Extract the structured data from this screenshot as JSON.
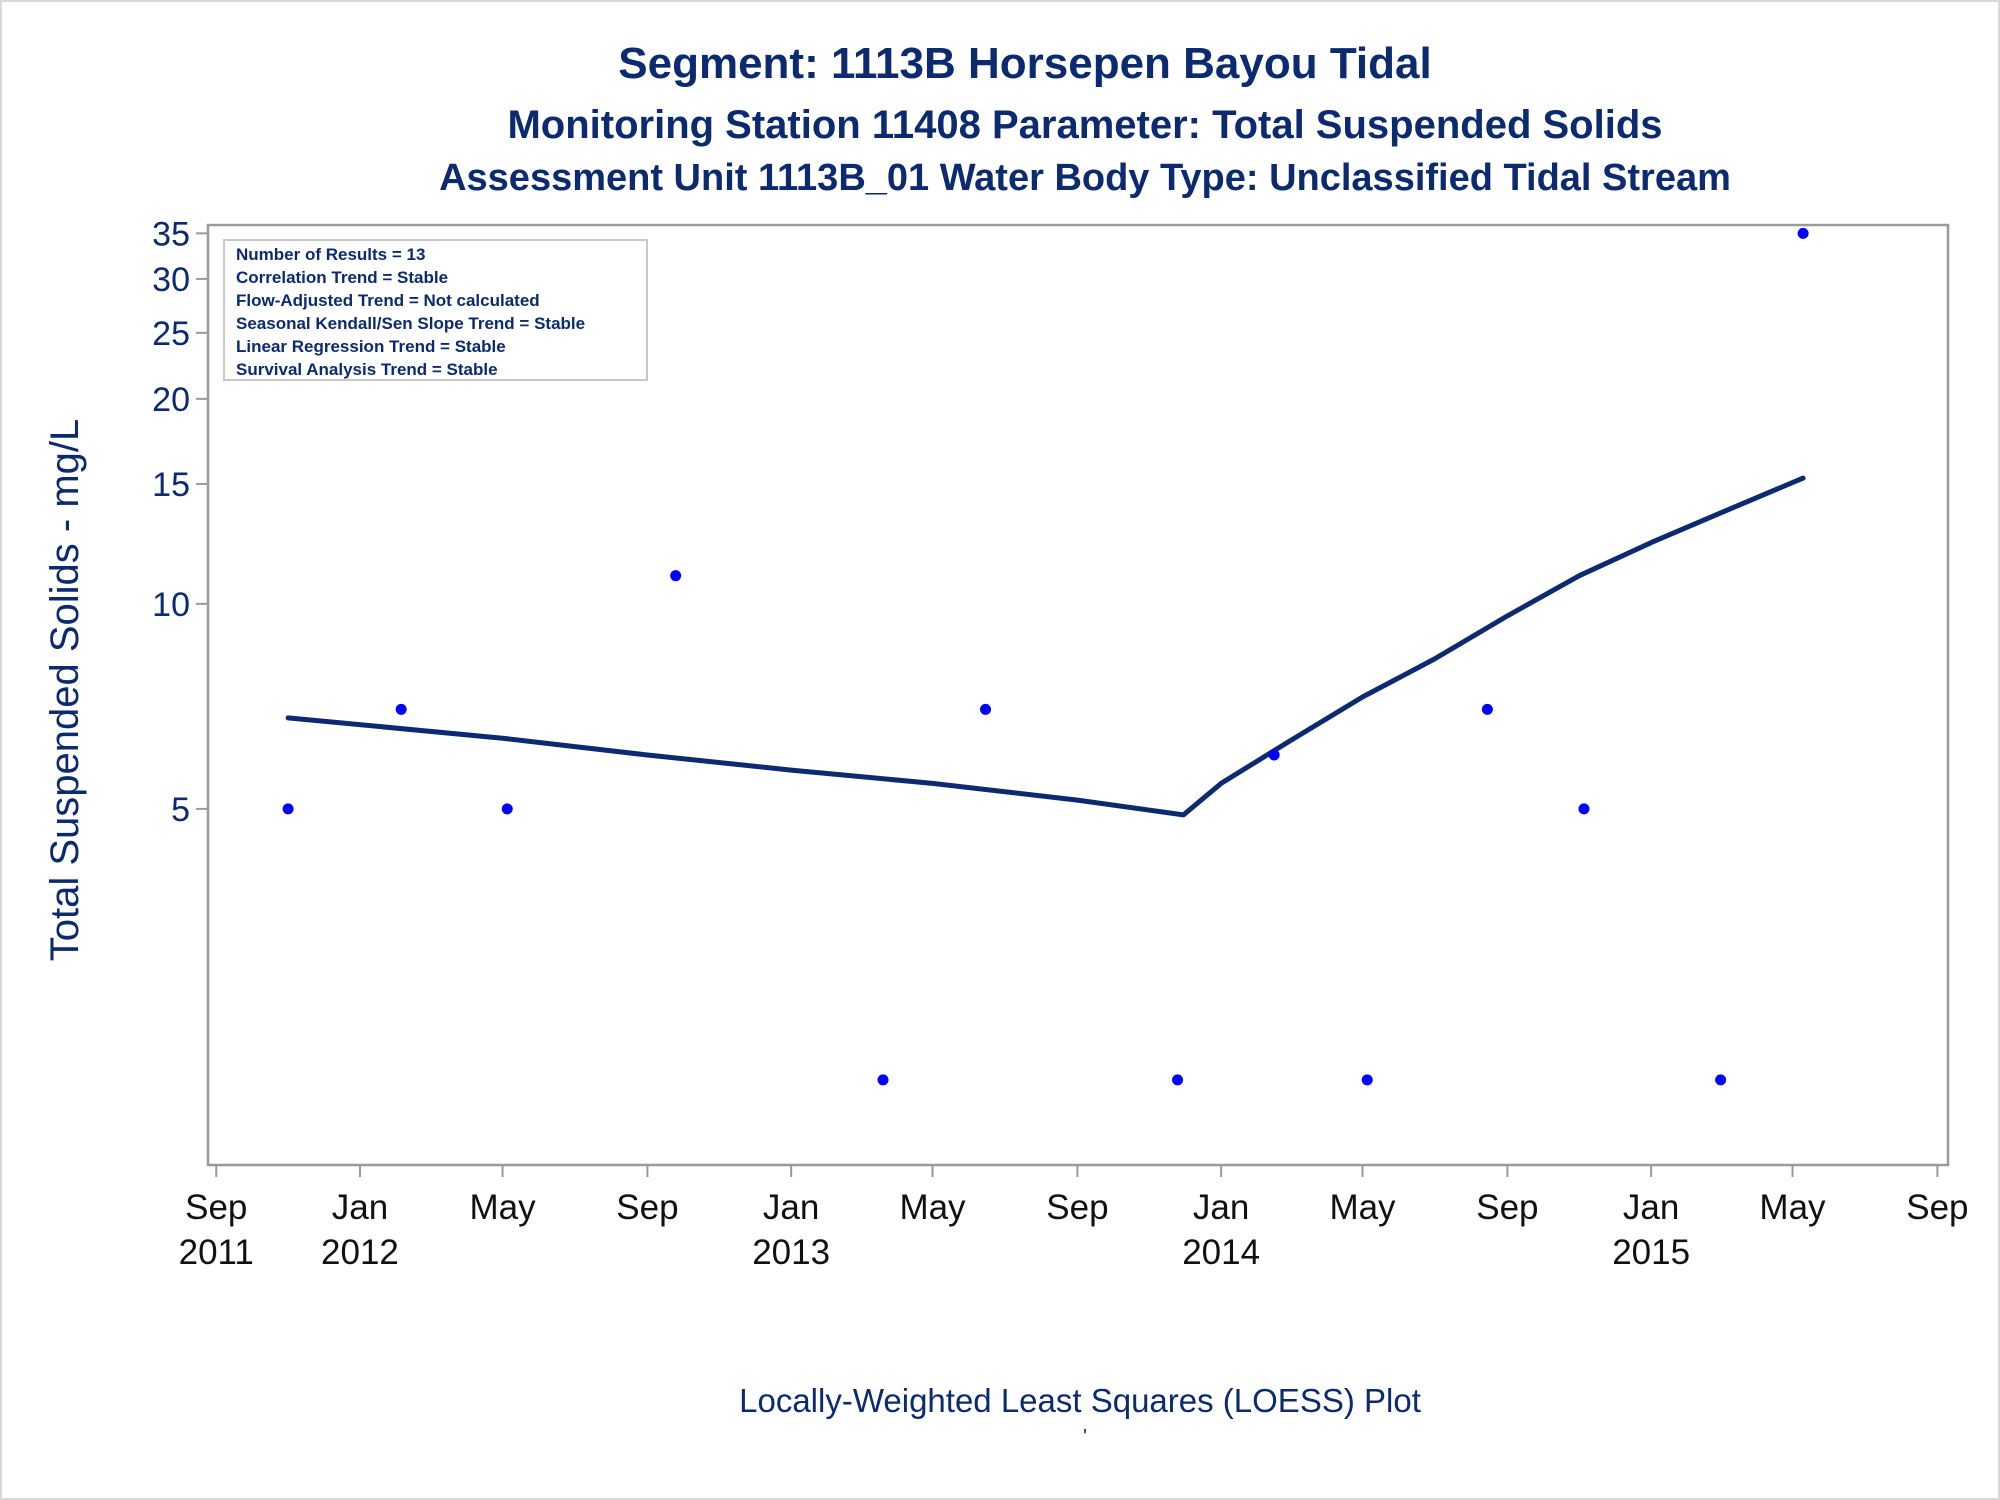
{
  "titles": {
    "line1": "Segment: 1113B  Horsepen Bayou Tidal",
    "line2": "Monitoring Station 11408 Parameter: Total Suspended Solids",
    "line3": "Assessment Unit 1113B_01   Water Body Type: Unclassified Tidal Stream"
  },
  "stats_box": [
    "Number of Results = 13",
    "Correlation Trend = Stable",
    "Flow-Adjusted Trend = Not calculated",
    "Seasonal Kendall/Sen Slope Trend = Stable",
    "Linear Regression Trend = Stable",
    "Survival Analysis Trend = Stable"
  ],
  "footnote": "Locally-Weighted Least Squares (LOESS) Plot",
  "footnote_mark": "'",
  "colors": {
    "text": "#0b2a6f",
    "points": "#0000ff",
    "loess_line": "#0b2a6f",
    "plot_border": "#9a9a9a"
  },
  "chart_data": {
    "type": "scatter",
    "title": "Segment: 1113B  Horsepen Bayou Tidal",
    "ylabel": "Total Suspended Solids - mg/L",
    "xlabel": "",
    "y_scale": "log",
    "ylim": [
      1.5,
      36
    ],
    "xlim": [
      "2011-08-25",
      "2015-09-10"
    ],
    "grid": false,
    "y_ticks": [
      5,
      10,
      15,
      20,
      25,
      30,
      35
    ],
    "x_ticks": [
      {
        "date": "2011-09-01",
        "label": [
          "Sep",
          "2011"
        ]
      },
      {
        "date": "2012-01-01",
        "label": [
          "Jan",
          "2012"
        ]
      },
      {
        "date": "2012-05-01",
        "label": [
          "May",
          ""
        ]
      },
      {
        "date": "2012-09-01",
        "label": [
          "Sep",
          ""
        ]
      },
      {
        "date": "2013-01-01",
        "label": [
          "Jan",
          "2013"
        ]
      },
      {
        "date": "2013-05-01",
        "label": [
          "May",
          ""
        ]
      },
      {
        "date": "2013-09-01",
        "label": [
          "Sep",
          ""
        ]
      },
      {
        "date": "2014-01-01",
        "label": [
          "Jan",
          "2014"
        ]
      },
      {
        "date": "2014-05-01",
        "label": [
          "May",
          ""
        ]
      },
      {
        "date": "2014-09-01",
        "label": [
          "Sep",
          ""
        ]
      },
      {
        "date": "2015-01-01",
        "label": [
          "Jan",
          "2015"
        ]
      },
      {
        "date": "2015-05-01",
        "label": [
          "May",
          ""
        ]
      },
      {
        "date": "2015-09-01",
        "label": [
          "Sep",
          ""
        ]
      }
    ],
    "series": [
      {
        "kind": "points",
        "points": [
          {
            "x": "2011-11-01",
            "y": 5
          },
          {
            "x": "2012-02-05",
            "y": 7
          },
          {
            "x": "2012-05-05",
            "y": 5
          },
          {
            "x": "2012-09-25",
            "y": 11
          },
          {
            "x": "2013-03-20",
            "y": 2
          },
          {
            "x": "2013-06-15",
            "y": 7
          },
          {
            "x": "2013-11-25",
            "y": 2
          },
          {
            "x": "2014-02-15",
            "y": 6
          },
          {
            "x": "2014-05-05",
            "y": 2
          },
          {
            "x": "2014-08-15",
            "y": 7
          },
          {
            "x": "2014-11-05",
            "y": 5
          },
          {
            "x": "2015-03-01",
            "y": 2
          },
          {
            "x": "2015-05-10",
            "y": 35
          }
        ]
      },
      {
        "kind": "loess",
        "points": [
          {
            "x": "2011-11-01",
            "y": 6.8
          },
          {
            "x": "2012-05-01",
            "y": 6.35
          },
          {
            "x": "2012-09-01",
            "y": 6.0
          },
          {
            "x": "2013-01-01",
            "y": 5.7
          },
          {
            "x": "2013-05-01",
            "y": 5.45
          },
          {
            "x": "2013-09-01",
            "y": 5.15
          },
          {
            "x": "2013-11-30",
            "y": 4.9
          },
          {
            "x": "2014-01-01",
            "y": 5.45
          },
          {
            "x": "2014-03-01",
            "y": 6.3
          },
          {
            "x": "2014-05-01",
            "y": 7.3
          },
          {
            "x": "2014-07-01",
            "y": 8.3
          },
          {
            "x": "2014-09-01",
            "y": 9.6
          },
          {
            "x": "2014-11-01",
            "y": 11.0
          },
          {
            "x": "2015-01-01",
            "y": 12.3
          },
          {
            "x": "2015-03-01",
            "y": 13.6
          },
          {
            "x": "2015-05-10",
            "y": 15.3
          }
        ]
      }
    ]
  }
}
